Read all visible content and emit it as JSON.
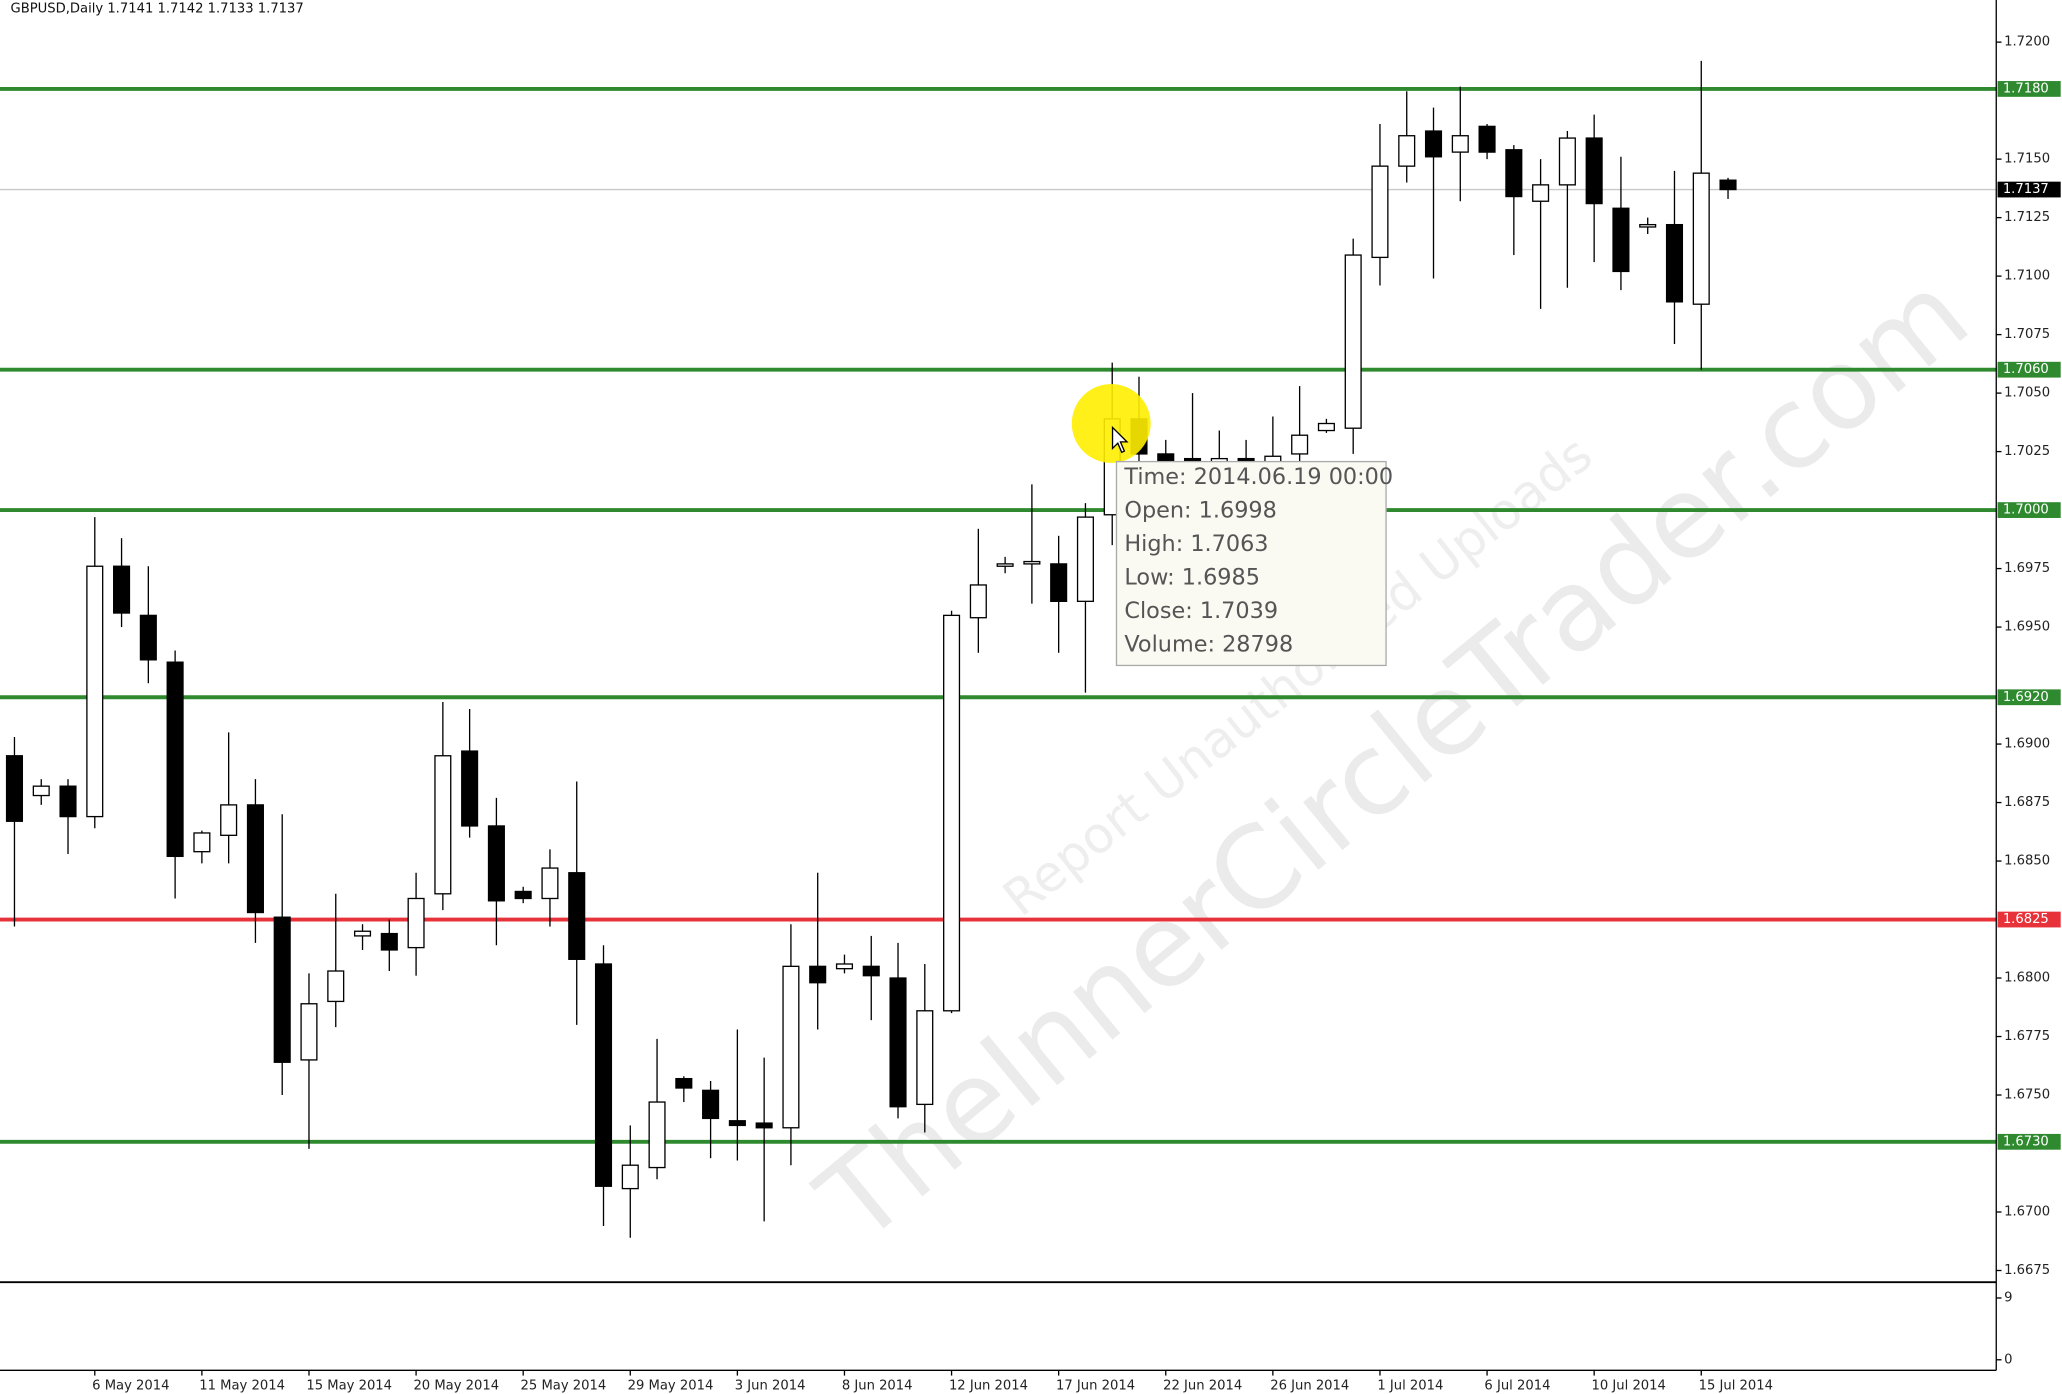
{
  "chart_data": {
    "type": "candlestick",
    "title": "GBPUSD,Daily  1.7141 1.7142 1.7133 1.7137",
    "categories": [
      null,
      null,
      null,
      "6 May 2014",
      null,
      null,
      null,
      "11 May 2014",
      null,
      null,
      null,
      "15 May 2014",
      null,
      null,
      null,
      "20 May 2014",
      null,
      null,
      null,
      "25 May 2014",
      null,
      null,
      null,
      "29 May 2014",
      null,
      null,
      null,
      "3 Jun 2014",
      null,
      null,
      null,
      "8 Jun 2014",
      null,
      null,
      null,
      "12 Jun 2014",
      null,
      null,
      null,
      "17 Jun 2014",
      null,
      null,
      null,
      "22 Jun 2014",
      null,
      null,
      null,
      "26 Jun 2014",
      null,
      null,
      null,
      "1 Jul 2014",
      null,
      null,
      null,
      "6 Jul 2014",
      null,
      null,
      null,
      "10 Jul 2014",
      null,
      null,
      null,
      "15 Jul 2014",
      null
    ],
    "open": [
      1.6895,
      1.6878,
      1.6882,
      1.6869,
      1.6976,
      1.6955,
      1.6935,
      1.6854,
      1.6861,
      1.6874,
      1.6826,
      1.6765,
      1.679,
      1.6818,
      1.6819,
      1.6813,
      1.6836,
      1.6897,
      1.6865,
      1.6837,
      1.6834,
      1.6845,
      1.6806,
      1.671,
      1.6719,
      1.6757,
      1.6752,
      1.6739,
      1.6738,
      1.6736,
      1.6805,
      1.6804,
      1.6805,
      1.68,
      1.6746,
      1.6786,
      1.6954,
      1.6976,
      1.6977,
      1.6977,
      1.6961,
      1.6998,
      1.7039,
      1.7024,
      1.7022,
      1.702,
      1.7022,
      1.702,
      1.7024,
      1.7034,
      1.7035,
      1.7108,
      1.7147,
      1.7162,
      1.7153,
      1.7164,
      1.7154,
      1.7132,
      1.7139,
      1.7159,
      1.7129,
      1.7121,
      1.7122,
      1.7088,
      1.7141
    ],
    "high": [
      1.6903,
      1.6885,
      1.6885,
      1.6997,
      1.6988,
      1.6976,
      1.694,
      1.6863,
      1.6905,
      1.6885,
      1.687,
      1.6802,
      1.6836,
      1.6823,
      1.6825,
      1.6845,
      1.6918,
      1.6915,
      1.6877,
      1.6839,
      1.6855,
      1.6884,
      1.6814,
      1.6737,
      1.6774,
      1.6758,
      1.6756,
      1.6778,
      1.6766,
      1.6823,
      1.6845,
      1.681,
      1.6818,
      1.6815,
      1.6806,
      1.6957,
      1.6992,
      1.698,
      1.7011,
      1.6989,
      1.7003,
      1.7063,
      1.7057,
      1.703,
      1.705,
      1.7034,
      1.703,
      1.704,
      1.7053,
      1.7039,
      1.7116,
      1.7165,
      1.7179,
      1.7172,
      1.7181,
      1.7165,
      1.7156,
      1.715,
      1.7162,
      1.7169,
      1.7151,
      1.7125,
      1.7145,
      1.7192,
      1.7142
    ],
    "low": [
      1.6822,
      1.6874,
      1.6853,
      1.6864,
      1.695,
      1.6926,
      1.6834,
      1.6849,
      1.6849,
      1.6815,
      1.675,
      1.6727,
      1.6779,
      1.6812,
      1.6803,
      1.6801,
      1.6829,
      1.686,
      1.6814,
      1.6832,
      1.6822,
      1.678,
      1.6694,
      1.6689,
      1.6714,
      1.6747,
      1.6723,
      1.6722,
      1.6696,
      1.672,
      1.6778,
      1.6802,
      1.6782,
      1.674,
      1.6734,
      1.6785,
      1.6939,
      1.6973,
      1.696,
      1.6939,
      1.6922,
      1.6985,
      1.701,
      1.7012,
      1.701,
      1.7012,
      1.7015,
      1.7012,
      1.7015,
      1.7033,
      1.7024,
      1.7096,
      1.714,
      1.7099,
      1.7132,
      1.715,
      1.7109,
      1.7086,
      1.7095,
      1.7106,
      1.7094,
      1.7118,
      1.7071,
      1.706,
      1.7133
    ],
    "close": [
      1.6867,
      1.6882,
      1.6869,
      1.6976,
      1.6956,
      1.6936,
      1.6852,
      1.6862,
      1.6874,
      1.6828,
      1.6764,
      1.6789,
      1.6803,
      1.682,
      1.6812,
      1.6834,
      1.6895,
      1.6865,
      1.6833,
      1.6834,
      1.6847,
      1.6808,
      1.6711,
      1.672,
      1.6747,
      1.6753,
      1.674,
      1.6737,
      1.6736,
      1.6805,
      1.6798,
      1.6806,
      1.6801,
      1.6745,
      1.6786,
      1.6955,
      1.6968,
      1.6977,
      1.6978,
      1.6961,
      1.6997,
      1.7039,
      1.7024,
      1.702,
      1.702,
      1.7022,
      1.702,
      1.7023,
      1.7032,
      1.7037,
      1.7109,
      1.7147,
      1.716,
      1.7151,
      1.716,
      1.7153,
      1.7134,
      1.7139,
      1.7159,
      1.7131,
      1.7102,
      1.7122,
      1.7089,
      1.7144,
      1.7137
    ],
    "ylim": [
      1.667,
      1.7218
    ],
    "yticks": [
      {
        "value": 1.72,
        "label": "1.7200"
      },
      {
        "value": 1.715,
        "label": "1.7150"
      },
      {
        "value": 1.7125,
        "label": "1.7125"
      },
      {
        "value": 1.71,
        "label": "1.7100"
      },
      {
        "value": 1.7075,
        "label": "1.7075"
      },
      {
        "value": 1.705,
        "label": "1.7050"
      },
      {
        "value": 1.7025,
        "label": "1.7025"
      },
      {
        "value": 1.6975,
        "label": "1.6975"
      },
      {
        "value": 1.695,
        "label": "1.6950"
      },
      {
        "value": 1.69,
        "label": "1.6900"
      },
      {
        "value": 1.6875,
        "label": "1.6875"
      },
      {
        "value": 1.685,
        "label": "1.6850"
      },
      {
        "value": 1.68,
        "label": "1.6800"
      },
      {
        "value": 1.6775,
        "label": "1.6775"
      },
      {
        "value": 1.675,
        "label": "1.6750"
      },
      {
        "value": 1.67,
        "label": "1.6700"
      },
      {
        "value": 1.6675,
        "label": "1.6675"
      }
    ],
    "levels": [
      {
        "value": 1.718,
        "label": "1.7180",
        "color": "#2f8a2f"
      },
      {
        "value": 1.706,
        "label": "1.7060",
        "color": "#2f8a2f"
      },
      {
        "value": 1.7,
        "label": "1.7000",
        "color": "#2f8a2f"
      },
      {
        "value": 1.692,
        "label": "1.6920",
        "color": "#2f8a2f"
      },
      {
        "value": 1.6825,
        "label": "1.6825",
        "color": "#e8323a"
      },
      {
        "value": 1.673,
        "label": "1.6730",
        "color": "#2f8a2f"
      }
    ],
    "current_price": {
      "value": 1.7137,
      "label": "1.7137"
    },
    "volume_ylim": [
      0,
      9
    ],
    "volume_yticks": [
      9,
      0
    ],
    "tooltip": [
      "Time: 2014.06.19 00:00",
      "Open: 1.6998",
      "High: 1.7063",
      "Low:  1.6985",
      "Close: 1.7039",
      "Volume: 28798"
    ],
    "watermark": [
      "TheInnerCircleTrader.com",
      "Report Unauthorized Uploads"
    ]
  }
}
